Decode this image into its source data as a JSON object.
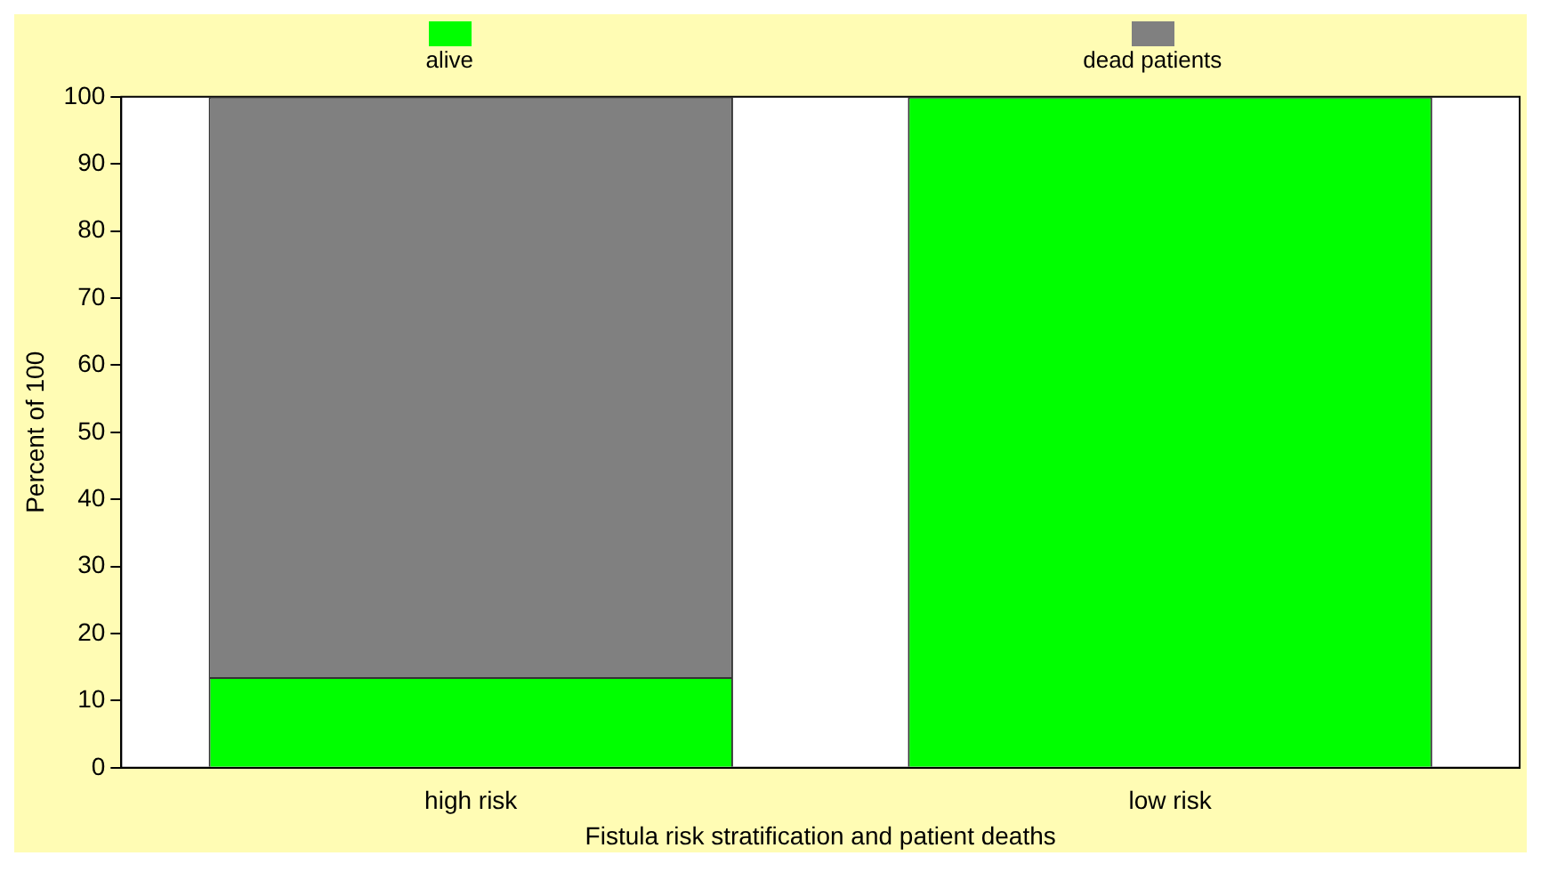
{
  "chart_data": {
    "type": "bar",
    "stacked": true,
    "xlabel": "Fistula risk stratification and patient deaths",
    "ylabel": "Percent of 100",
    "categories": [
      "high risk",
      "low risk"
    ],
    "series": [
      {
        "name": "alive",
        "color": "#00ff00",
        "values": [
          13.5,
          100
        ]
      },
      {
        "name": "dead patients",
        "color": "#808080",
        "values": [
          86.5,
          0
        ]
      }
    ],
    "ylim": [
      0,
      100
    ],
    "yticks": [
      0,
      10,
      20,
      30,
      40,
      50,
      60,
      70,
      80,
      90,
      100
    ],
    "grid": false,
    "legend": "top"
  }
}
